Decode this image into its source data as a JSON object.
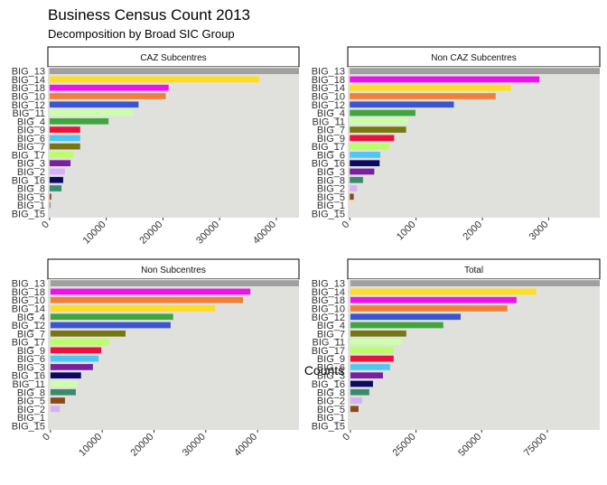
{
  "title": "Business Census Count 2013",
  "subtitle": "Decomposition by Broad SIC Group",
  "xlabel": "Counts",
  "palette": {
    "BIG_13": "#a0a0a0",
    "BIG_14": "#ffdd22",
    "BIG_18": "#ee11ee",
    "BIG_10": "#f07f3a",
    "BIG_12": "#3b55d0",
    "BIG_11": "#ccffaa",
    "BIG_4": "#3fa63f",
    "BIG_9": "#e8123c",
    "BIG_6": "#4ec8f0",
    "BIG_7": "#777711",
    "BIG_17": "#bbff66",
    "BIG_3": "#7a1fa0",
    "BIG_2": "#d8b0f8",
    "BIG_16": "#0a0a66",
    "BIG_8": "#3a8a70",
    "BIG_5": "#8b4a1a",
    "BIG_1": "#333333",
    "BIG_15": "#888888"
  },
  "chart_data": [
    {
      "type": "bar",
      "orientation": "horizontal",
      "facet": "CAZ Subcentres",
      "categories": [
        "BIG_13",
        "BIG_14",
        "BIG_18",
        "BIG_10",
        "BIG_12",
        "BIG_11",
        "BIG_4",
        "BIG_9",
        "BIG_6",
        "BIG_7",
        "BIG_17",
        "BIG_3",
        "BIG_2",
        "BIG_16",
        "BIG_8",
        "BIG_5",
        "BIG_1",
        "BIG_15"
      ],
      "values": [
        44000,
        37000,
        21000,
        20500,
        15700,
        14700,
        10400,
        5400,
        5400,
        5400,
        4200,
        3700,
        2700,
        2400,
        2100,
        300,
        100,
        0
      ],
      "xlim": [
        -300,
        44000
      ],
      "xticks": [
        0,
        10000,
        20000,
        30000,
        40000
      ]
    },
    {
      "type": "bar",
      "orientation": "horizontal",
      "facet": "Non CAZ Subcentres",
      "categories": [
        "BIG_13",
        "BIG_18",
        "BIG_14",
        "BIG_10",
        "BIG_12",
        "BIG_4",
        "BIG_11",
        "BIG_7",
        "BIG_9",
        "BIG_17",
        "BIG_6",
        "BIG_16",
        "BIG_3",
        "BIG_8",
        "BIG_2",
        "BIG_5",
        "BIG_1",
        "BIG_15"
      ],
      "values": [
        3770,
        2860,
        2430,
        2200,
        1570,
        990,
        870,
        850,
        670,
        600,
        460,
        450,
        370,
        200,
        110,
        60,
        0,
        0
      ],
      "xlim": [
        -30,
        3770
      ],
      "xticks": [
        0,
        1000,
        2000,
        3000
      ]
    },
    {
      "type": "bar",
      "orientation": "horizontal",
      "facet": "Non Subcentres",
      "categories": [
        "BIG_13",
        "BIG_18",
        "BIG_10",
        "BIG_14",
        "BIG_4",
        "BIG_12",
        "BIG_7",
        "BIG_17",
        "BIG_9",
        "BIG_6",
        "BIG_3",
        "BIG_16",
        "BIG_11",
        "BIG_8",
        "BIG_5",
        "BIG_2",
        "BIG_1",
        "BIG_15"
      ],
      "values": [
        48000,
        38600,
        37200,
        31800,
        23700,
        23200,
        14500,
        11300,
        9800,
        9300,
        8200,
        5900,
        5200,
        4900,
        2800,
        1800,
        0,
        0
      ],
      "xlim": [
        -500,
        48000
      ],
      "xticks": [
        0,
        10000,
        20000,
        30000,
        40000
      ]
    },
    {
      "type": "bar",
      "orientation": "horizontal",
      "facet": "Total",
      "categories": [
        "BIG_13",
        "BIG_14",
        "BIG_18",
        "BIG_10",
        "BIG_12",
        "BIG_4",
        "BIG_7",
        "BIG_11",
        "BIG_17",
        "BIG_9",
        "BIG_6",
        "BIG_3",
        "BIG_16",
        "BIG_8",
        "BIG_2",
        "BIG_5",
        "BIG_1",
        "BIG_15"
      ],
      "values": [
        95000,
        70800,
        63300,
        59800,
        42000,
        35400,
        21300,
        19600,
        16500,
        16500,
        15100,
        12400,
        8600,
        7200,
        4500,
        3100,
        0,
        0
      ],
      "xlim": [
        -1000,
        95000
      ],
      "xticks": [
        0,
        25000,
        50000,
        75000
      ]
    }
  ]
}
